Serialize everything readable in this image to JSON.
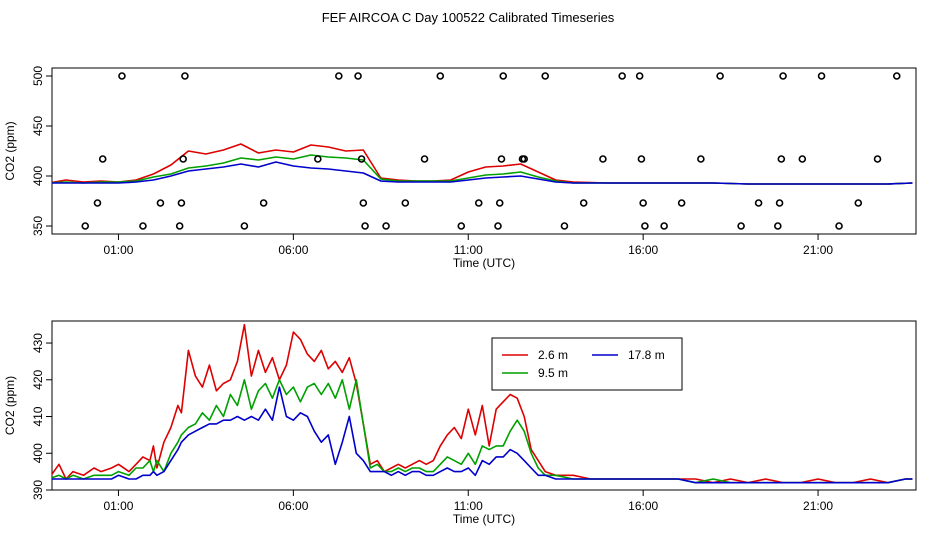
{
  "title": "FEF AIRCOA C  Day 100522  Calibrated Timeseries",
  "colors": {
    "h26": "#dd0000",
    "h95": "#00a000",
    "h178": "#0000cc"
  },
  "chart_data": [
    {
      "type": "scatter+line",
      "xlabel": "Time (UTC)",
      "ylabel": "CO2 (ppm)",
      "xlim": [
        -0.9,
        23.8
      ],
      "ylim": [
        342,
        508
      ],
      "xticks": [
        1,
        6,
        11,
        16,
        21
      ],
      "xticklabels": [
        "01:00",
        "06:00",
        "11:00",
        "16:00",
        "21:00"
      ],
      "yticks": [
        350,
        400,
        450,
        500
      ],
      "yticklabels": [
        "350",
        "400",
        "450",
        "500"
      ],
      "calibration_points": [
        [
          0.05,
          350
        ],
        [
          0.4,
          373
        ],
        [
          0.55,
          417
        ],
        [
          1.1,
          500
        ],
        [
          1.7,
          350
        ],
        [
          2.2,
          373
        ],
        [
          2.75,
          350
        ],
        [
          2.8,
          373
        ],
        [
          2.85,
          417
        ],
        [
          2.9,
          500
        ],
        [
          4.6,
          350
        ],
        [
          5.15,
          373
        ],
        [
          6.7,
          417
        ],
        [
          7.3,
          500
        ],
        [
          7.85,
          500
        ],
        [
          7.95,
          417
        ],
        [
          8.0,
          373
        ],
        [
          8.05,
          350
        ],
        [
          8.65,
          350
        ],
        [
          9.2,
          373
        ],
        [
          9.75,
          417
        ],
        [
          10.2,
          500
        ],
        [
          10.8,
          350
        ],
        [
          11.3,
          373
        ],
        [
          11.85,
          350
        ],
        [
          11.9,
          373
        ],
        [
          11.95,
          417
        ],
        [
          12.0,
          500
        ],
        [
          12.55,
          417
        ],
        [
          12.6,
          417
        ],
        [
          13.2,
          500
        ],
        [
          13.75,
          350
        ],
        [
          14.3,
          373
        ],
        [
          14.85,
          417
        ],
        [
          15.4,
          500
        ],
        [
          15.9,
          500
        ],
        [
          15.95,
          417
        ],
        [
          16.0,
          373
        ],
        [
          16.05,
          350
        ],
        [
          16.6,
          350
        ],
        [
          17.1,
          373
        ],
        [
          17.65,
          417
        ],
        [
          18.2,
          500
        ],
        [
          18.8,
          350
        ],
        [
          19.3,
          373
        ],
        [
          19.85,
          350
        ],
        [
          19.9,
          373
        ],
        [
          19.95,
          417
        ],
        [
          20.0,
          500
        ],
        [
          20.55,
          417
        ],
        [
          21.1,
          500
        ],
        [
          21.6,
          350
        ],
        [
          22.15,
          373
        ],
        [
          22.7,
          417
        ],
        [
          23.25,
          500
        ]
      ],
      "series": [
        {
          "key": "h26",
          "x": [
            -1,
            -0.5,
            0,
            0.5,
            1,
            1.5,
            2,
            2.5,
            3,
            3.5,
            4,
            4.5,
            5,
            5.5,
            6,
            6.5,
            7,
            7.5,
            8,
            8.5,
            9,
            9.5,
            10,
            10.5,
            11,
            11.5,
            12,
            12.5,
            13,
            13.5,
            14,
            15,
            16,
            17,
            18,
            19,
            20,
            21,
            22,
            23,
            23.7
          ],
          "y": [
            393,
            396,
            394,
            395,
            394,
            396,
            402,
            411,
            425,
            422,
            426,
            432,
            423,
            426,
            424,
            431,
            429,
            425,
            426,
            398,
            396,
            395,
            395,
            396,
            404,
            409,
            410,
            412,
            404,
            396,
            394,
            393,
            393,
            393,
            393,
            392,
            392,
            392,
            392,
            392,
            393
          ]
        },
        {
          "key": "h95",
          "x": [
            -1,
            -0.5,
            0,
            0.5,
            1,
            1.5,
            2,
            2.5,
            3,
            3.5,
            4,
            4.5,
            5,
            5.5,
            6,
            6.5,
            7,
            7.5,
            8,
            8.5,
            9,
            9.5,
            10,
            10.5,
            11,
            11.5,
            12,
            12.5,
            13,
            13.5,
            14,
            15,
            16,
            17,
            18,
            19,
            20,
            21,
            22,
            23,
            23.7
          ],
          "y": [
            393,
            394,
            393,
            394,
            394,
            395,
            399,
            402,
            408,
            410,
            413,
            418,
            416,
            419,
            417,
            421,
            419,
            418,
            416,
            397,
            395,
            395,
            395,
            395,
            398,
            401,
            402,
            404,
            399,
            395,
            393,
            393,
            393,
            393,
            393,
            392,
            392,
            392,
            392,
            392,
            393
          ]
        },
        {
          "key": "h178",
          "x": [
            -1,
            -0.5,
            0,
            0.5,
            1,
            1.5,
            2,
            2.5,
            3,
            3.5,
            4,
            4.5,
            5,
            5.5,
            6,
            6.5,
            7,
            7.5,
            8,
            8.5,
            9,
            9.5,
            10,
            10.5,
            11,
            11.5,
            12,
            12.5,
            13,
            13.5,
            14,
            15,
            16,
            17,
            18,
            19,
            20,
            21,
            22,
            23,
            23.7
          ],
          "y": [
            393,
            393,
            393,
            393,
            393,
            394,
            396,
            400,
            405,
            407,
            409,
            412,
            409,
            414,
            410,
            408,
            407,
            405,
            403,
            395,
            394,
            394,
            394,
            394,
            396,
            398,
            399,
            400,
            397,
            394,
            393,
            393,
            393,
            393,
            393,
            392,
            392,
            392,
            392,
            392,
            393
          ]
        }
      ]
    },
    {
      "type": "line",
      "xlabel": "Time (UTC)",
      "ylabel": "CO2 (ppm)",
      "xlim": [
        -0.9,
        23.8
      ],
      "ylim": [
        390,
        436
      ],
      "xticks": [
        1,
        6,
        11,
        16,
        21
      ],
      "xticklabels": [
        "01:00",
        "06:00",
        "11:00",
        "16:00",
        "21:00"
      ],
      "yticks": [
        390,
        400,
        410,
        420,
        430
      ],
      "yticklabels": [
        "390",
        "400",
        "410",
        "420",
        "430"
      ],
      "legend": {
        "position": "top-right",
        "entries": [
          {
            "key": "h26",
            "label": "2.6 m"
          },
          {
            "key": "h95",
            "label": "9.5 m"
          },
          {
            "key": "h178",
            "label": "17.8 m"
          }
        ]
      },
      "series": [
        {
          "key": "h26",
          "name": "2.6 m",
          "x": [
            -1,
            -0.7,
            -0.5,
            -0.3,
            0,
            0.3,
            0.5,
            0.8,
            1,
            1.3,
            1.5,
            1.7,
            1.9,
            2,
            2.1,
            2.3,
            2.5,
            2.7,
            2.8,
            3,
            3.2,
            3.4,
            3.6,
            3.8,
            4,
            4.2,
            4.4,
            4.6,
            4.8,
            5,
            5.2,
            5.4,
            5.6,
            5.8,
            6,
            6.2,
            6.4,
            6.6,
            6.8,
            7,
            7.2,
            7.4,
            7.6,
            7.8,
            8,
            8.2,
            8.4,
            8.6,
            8.8,
            9,
            9.2,
            9.4,
            9.6,
            9.8,
            10,
            10.2,
            10.4,
            10.6,
            10.8,
            11,
            11.2,
            11.4,
            11.6,
            11.8,
            12,
            12.2,
            12.4,
            12.6,
            12.8,
            13,
            13.2,
            13.5,
            14,
            14.5,
            15,
            15.5,
            16,
            16.5,
            17,
            17.5,
            18,
            18.5,
            19,
            19.5,
            20,
            20.5,
            21,
            21.5,
            22,
            22.5,
            23,
            23.5,
            23.7
          ],
          "y": [
            393,
            397,
            393,
            395,
            394,
            396,
            395,
            396,
            397,
            395,
            397,
            399,
            398,
            402,
            396,
            403,
            407,
            413,
            411,
            428,
            421,
            418,
            424,
            417,
            419,
            420,
            425,
            435,
            421,
            428,
            422,
            426,
            420,
            424,
            433,
            431,
            427,
            425,
            428,
            423,
            425,
            422,
            426,
            419,
            408,
            397,
            398,
            395,
            396,
            397,
            396,
            397,
            398,
            397,
            398,
            402,
            405,
            407,
            404,
            412,
            405,
            413,
            402,
            412,
            414,
            416,
            415,
            410,
            401,
            398,
            395,
            394,
            394,
            393,
            393,
            393,
            393,
            393,
            393,
            393,
            392,
            393,
            392,
            393,
            392,
            392,
            393,
            392,
            392,
            393,
            392,
            393,
            393
          ]
        },
        {
          "key": "h95",
          "name": "9.5 m",
          "x": [
            -1,
            -0.7,
            -0.5,
            -0.3,
            0,
            0.3,
            0.5,
            0.8,
            1,
            1.3,
            1.5,
            1.7,
            1.9,
            2,
            2.1,
            2.3,
            2.5,
            2.7,
            2.8,
            3,
            3.2,
            3.4,
            3.6,
            3.8,
            4,
            4.2,
            4.4,
            4.6,
            4.8,
            5,
            5.2,
            5.4,
            5.6,
            5.8,
            6,
            6.2,
            6.4,
            6.6,
            6.8,
            7,
            7.2,
            7.4,
            7.6,
            7.8,
            8,
            8.2,
            8.4,
            8.6,
            8.8,
            9,
            9.2,
            9.4,
            9.6,
            9.8,
            10,
            10.2,
            10.4,
            10.6,
            10.8,
            11,
            11.2,
            11.4,
            11.6,
            11.8,
            12,
            12.2,
            12.4,
            12.6,
            12.8,
            13,
            13.2,
            13.5,
            14,
            14.5,
            15,
            15.5,
            16,
            16.5,
            17,
            17.5,
            18,
            18.5,
            19,
            19.5,
            20,
            20.5,
            21,
            21.5,
            22,
            22.5,
            23,
            23.5,
            23.7
          ],
          "y": [
            393,
            394,
            393,
            394,
            393,
            394,
            394,
            394,
            395,
            394,
            396,
            396,
            398,
            395,
            398,
            395,
            400,
            403,
            405,
            407,
            408,
            411,
            409,
            413,
            410,
            416,
            413,
            420,
            412,
            417,
            419,
            415,
            420,
            416,
            418,
            414,
            418,
            419,
            416,
            419,
            415,
            420,
            412,
            420,
            408,
            396,
            397,
            395,
            395,
            396,
            395,
            396,
            396,
            395,
            395,
            397,
            399,
            398,
            397,
            400,
            397,
            402,
            401,
            402,
            402,
            406,
            409,
            406,
            400,
            396,
            394,
            394,
            393,
            393,
            393,
            393,
            393,
            393,
            393,
            392,
            393,
            392,
            392,
            392,
            392,
            392,
            392,
            392,
            392,
            392,
            392,
            393,
            393
          ]
        },
        {
          "key": "h178",
          "name": "17.8 m",
          "x": [
            -1,
            -0.7,
            -0.5,
            -0.3,
            0,
            0.3,
            0.5,
            0.8,
            1,
            1.3,
            1.5,
            1.7,
            1.9,
            2,
            2.1,
            2.3,
            2.5,
            2.7,
            2.8,
            3,
            3.2,
            3.4,
            3.6,
            3.8,
            4,
            4.2,
            4.4,
            4.6,
            4.8,
            5,
            5.2,
            5.4,
            5.6,
            5.8,
            6,
            6.2,
            6.4,
            6.6,
            6.8,
            7,
            7.2,
            7.4,
            7.6,
            7.8,
            8,
            8.2,
            8.4,
            8.6,
            8.8,
            9,
            9.2,
            9.4,
            9.6,
            9.8,
            10,
            10.2,
            10.4,
            10.6,
            10.8,
            11,
            11.2,
            11.4,
            11.6,
            11.8,
            12,
            12.2,
            12.4,
            12.6,
            12.8,
            13,
            13.2,
            13.5,
            14,
            14.5,
            15,
            15.5,
            16,
            16.5,
            17,
            17.5,
            18,
            18.5,
            19,
            19.5,
            20,
            20.5,
            21,
            21.5,
            22,
            22.5,
            23,
            23.5,
            23.7
          ],
          "y": [
            393,
            393,
            393,
            393,
            393,
            393,
            393,
            393,
            394,
            393,
            393,
            394,
            394,
            395,
            394,
            395,
            398,
            401,
            403,
            405,
            406,
            407,
            408,
            408,
            409,
            409,
            410,
            409,
            410,
            409,
            412,
            409,
            418,
            410,
            409,
            411,
            410,
            406,
            403,
            405,
            397,
            403,
            410,
            400,
            398,
            395,
            395,
            395,
            394,
            395,
            394,
            395,
            395,
            394,
            394,
            395,
            396,
            395,
            395,
            396,
            394,
            398,
            397,
            399,
            399,
            401,
            400,
            398,
            396,
            394,
            394,
            393,
            393,
            393,
            393,
            393,
            393,
            393,
            393,
            392,
            392,
            392,
            392,
            392,
            392,
            392,
            392,
            392,
            392,
            392,
            392,
            393,
            393
          ]
        }
      ]
    }
  ]
}
